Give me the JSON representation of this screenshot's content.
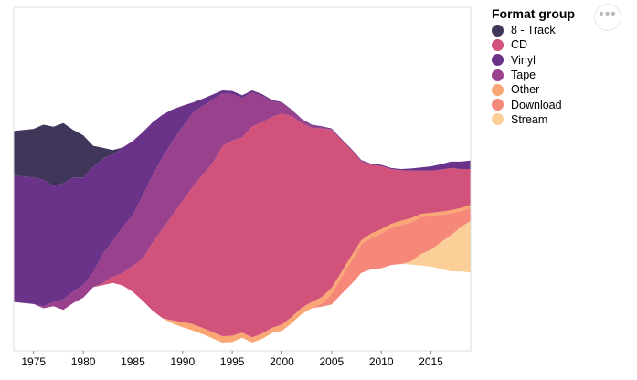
{
  "chart_data": {
    "type": "area",
    "title": "",
    "xlabel": "",
    "ylabel": "",
    "stack": "streamgraph (centered)",
    "x": [
      1973,
      1974,
      1975,
      1976,
      1977,
      1978,
      1979,
      1980,
      1981,
      1982,
      1983,
      1984,
      1985,
      1986,
      1987,
      1988,
      1989,
      1990,
      1991,
      1992,
      1993,
      1994,
      1995,
      1996,
      1997,
      1998,
      1999,
      2000,
      2001,
      2002,
      2003,
      2004,
      2005,
      2006,
      2007,
      2008,
      2009,
      2010,
      2011,
      2012,
      2013,
      2014,
      2015,
      2016,
      2017,
      2018,
      2019
    ],
    "xlim": [
      1973,
      2019
    ],
    "x_ticks": [
      1975,
      1980,
      1985,
      1990,
      1995,
      2000,
      2005,
      2010,
      2015
    ],
    "series": [
      {
        "name": "Stream",
        "color": "#fbcf97",
        "values": [
          0,
          0,
          0,
          0,
          0,
          0,
          0,
          0,
          0,
          0,
          0,
          0,
          0,
          0,
          0,
          0,
          0,
          0,
          0,
          0,
          0,
          0,
          0,
          0,
          0,
          0,
          0,
          0,
          0,
          0,
          0,
          0,
          0,
          0,
          0,
          0,
          0,
          0,
          0,
          0,
          3,
          11,
          16,
          25,
          34,
          42,
          49
        ]
      },
      {
        "name": "Download",
        "color": "#f6887a",
        "values": [
          0,
          0,
          0,
          0,
          0,
          0,
          0,
          0,
          0,
          0,
          0,
          0,
          0,
          0,
          0,
          0,
          0,
          0,
          0,
          0,
          0,
          0,
          0,
          0,
          0,
          0,
          0,
          0,
          0,
          0,
          0,
          3,
          10,
          16,
          22,
          27,
          30,
          33,
          35,
          37,
          37,
          35,
          32,
          26,
          21,
          15,
          12
        ]
      },
      {
        "name": "Other",
        "color": "#fba775",
        "values": [
          0,
          0,
          0,
          0,
          0,
          0,
          0,
          0,
          0,
          0,
          0,
          0,
          0,
          0,
          0,
          0,
          3,
          5,
          6,
          6,
          6,
          6,
          6,
          5,
          5,
          5,
          5,
          6,
          6,
          6,
          6,
          6,
          6,
          5,
          5,
          4,
          4,
          4,
          4,
          4,
          4,
          3,
          3,
          3,
          3,
          3,
          3
        ]
      },
      {
        "name": "CD",
        "color": "#d1527a",
        "values": [
          0,
          0,
          0,
          0,
          0,
          0,
          0,
          0,
          0,
          2,
          6,
          12,
          25,
          40,
          65,
          85,
          100,
          115,
          130,
          145,
          160,
          180,
          185,
          185,
          200,
          200,
          200,
          200,
          190,
          175,
          165,
          160,
          150,
          125,
          100,
          75,
          65,
          60,
          52,
          48,
          45,
          41,
          40,
          40,
          40,
          37,
          34
        ]
      },
      {
        "name": "Tape",
        "color": "#99418d",
        "values": [
          0,
          0,
          0,
          2,
          4,
          10,
          11,
          12,
          14,
          28,
          34,
          44,
          48,
          60,
          64,
          68,
          70,
          70,
          70,
          65,
          60,
          50,
          44,
          37,
          32,
          25,
          15,
          10,
          5,
          3,
          2,
          1,
          0,
          0,
          0,
          0,
          0,
          0,
          0,
          0,
          0,
          0,
          0,
          0,
          0,
          0,
          0
        ]
      },
      {
        "name": "Vinyl",
        "color": "#6a3288",
        "values": [
          120,
          120,
          120,
          120,
          110,
          110,
          108,
          102,
          100,
          90,
          82,
          75,
          70,
          60,
          50,
          40,
          30,
          20,
          10,
          7,
          5,
          3,
          3,
          3,
          2,
          2,
          1,
          1,
          1,
          1,
          1,
          1,
          1,
          1,
          1,
          1,
          1,
          1,
          1,
          1,
          2,
          3,
          4,
          5,
          6,
          7,
          8
        ]
      },
      {
        "name": "8 - Track",
        "color": "#40365a",
        "values": [
          42,
          44,
          46,
          52,
          56,
          57,
          45,
          40,
          20,
          10,
          4,
          0,
          0,
          0,
          0,
          0,
          0,
          0,
          0,
          0,
          0,
          0,
          0,
          0,
          0,
          0,
          0,
          0,
          0,
          0,
          0,
          0,
          0,
          0,
          0,
          0,
          0,
          0,
          0,
          0,
          0,
          0,
          0,
          0,
          0,
          0,
          0
        ]
      }
    ],
    "legend": {
      "title": "Format group",
      "placement": "right",
      "order": [
        "8 - Track",
        "CD",
        "Vinyl",
        "Tape",
        "Other",
        "Download",
        "Stream"
      ]
    },
    "grid": false
  },
  "controls": {
    "more_icon": "ellipsis-icon",
    "more_label": "•••"
  }
}
